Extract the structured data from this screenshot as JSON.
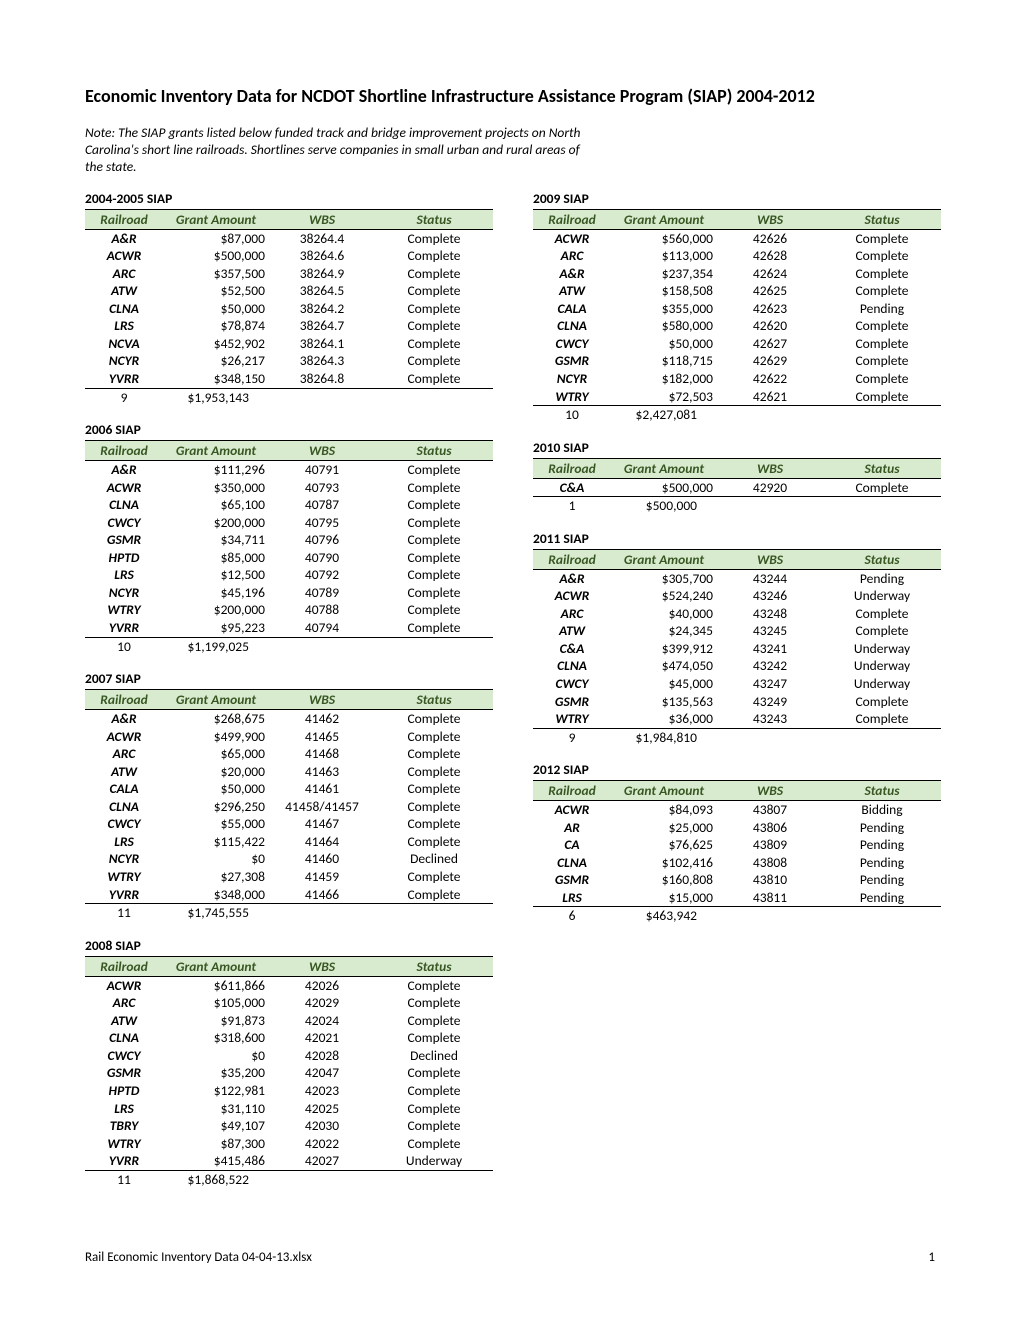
{
  "title": "Economic Inventory Data for NCDOT Shortline Infrastructure Assistance Program (SIAP) 2004-2012",
  "note": "Note:  The SIAP grants listed below funded track and bridge improvement projects on North Carolina's short line railroads.  Shortlines serve companies in small urban and rural areas of the state.",
  "headers": {
    "rail": "Railroad",
    "amt": "Grant Amount",
    "wbs": "WBS",
    "stat": "Status"
  },
  "footer": {
    "file": "Rail Economic Inventory Data 04-04-13.xlsx",
    "page": "1"
  },
  "colors": {
    "header_bg": "#d9ebcf",
    "header_fg": "#385723",
    "border": "#000000",
    "background": "#ffffff"
  },
  "blocks_left": [
    {
      "title": "2004-2005       SIAP",
      "rows": [
        [
          "A&R",
          "$87,000",
          "38264.4",
          "Complete"
        ],
        [
          "ACWR",
          "$500,000",
          "38264.6",
          "Complete"
        ],
        [
          "ARC",
          "$357,500",
          "38264.9",
          "Complete"
        ],
        [
          "ATW",
          "$52,500",
          "38264.5",
          "Complete"
        ],
        [
          "CLNA",
          "$50,000",
          "38264.2",
          "Complete"
        ],
        [
          "LRS",
          "$78,874",
          "38264.7",
          "Complete"
        ],
        [
          "NCVA",
          "$452,902",
          "38264.1",
          "Complete"
        ],
        [
          "NCYR",
          "$26,217",
          "38264.3",
          "Complete"
        ],
        [
          "YVRR",
          "$348,150",
          "38264.8",
          "Complete"
        ]
      ],
      "total": [
        "9",
        "$1,953,143"
      ]
    },
    {
      "title": "2006 SIAP",
      "rows": [
        [
          "A&R",
          "$111,296",
          "40791",
          "Complete"
        ],
        [
          "ACWR",
          "$350,000",
          "40793",
          "Complete"
        ],
        [
          "CLNA",
          "$65,100",
          "40787",
          "Complete"
        ],
        [
          "CWCY",
          "$200,000",
          "40795",
          "Complete"
        ],
        [
          "GSMR",
          "$34,711",
          "40796",
          "Complete"
        ],
        [
          "HPTD",
          "$85,000",
          "40790",
          "Complete"
        ],
        [
          "LRS",
          "$12,500",
          "40792",
          "Complete"
        ],
        [
          "NCYR",
          "$45,196",
          "40789",
          "Complete"
        ],
        [
          "WTRY",
          "$200,000",
          "40788",
          "Complete"
        ],
        [
          "YVRR",
          "$95,223",
          "40794",
          "Complete"
        ]
      ],
      "total": [
        "10",
        "$1,199,025"
      ]
    },
    {
      "title": "2007 SIAP",
      "rows": [
        [
          "A&R",
          "$268,675",
          "41462",
          "Complete"
        ],
        [
          "ACWR",
          "$499,900",
          "41465",
          "Complete"
        ],
        [
          "ARC",
          "$65,000",
          "41468",
          "Complete"
        ],
        [
          "ATW",
          "$20,000",
          "41463",
          "Complete"
        ],
        [
          "CALA",
          "$50,000",
          "41461",
          "Complete"
        ],
        [
          "CLNA",
          "$296,250",
          "41458/41457",
          "Complete"
        ],
        [
          "CWCY",
          "$55,000",
          "41467",
          "Complete"
        ],
        [
          "LRS",
          "$115,422",
          "41464",
          "Complete"
        ],
        [
          "NCYR",
          "$0",
          "41460",
          "Declined"
        ],
        [
          "WTRY",
          "$27,308",
          "41459",
          "Complete"
        ],
        [
          "YVRR",
          "$348,000",
          "41466",
          "Complete"
        ]
      ],
      "total": [
        "11",
        "$1,745,555"
      ]
    },
    {
      "title": "2008 SIAP",
      "rows": [
        [
          "ACWR",
          "$611,866",
          "42026",
          "Complete"
        ],
        [
          "ARC",
          "$105,000",
          "42029",
          "Complete"
        ],
        [
          "ATW",
          "$91,873",
          "42024",
          "Complete"
        ],
        [
          "CLNA",
          "$318,600",
          "42021",
          "Complete"
        ],
        [
          "CWCY",
          "$0",
          "42028",
          "Declined"
        ],
        [
          "GSMR",
          "$35,200",
          "42047",
          "Complete"
        ],
        [
          "HPTD",
          "$122,981",
          "42023",
          "Complete"
        ],
        [
          "LRS",
          "$31,110",
          "42025",
          "Complete"
        ],
        [
          "TBRY",
          "$49,107",
          "42030",
          "Complete"
        ],
        [
          "WTRY",
          "$87,300",
          "42022",
          "Complete"
        ],
        [
          "YVRR",
          "$415,486",
          "42027",
          "Underway"
        ]
      ],
      "total": [
        "11",
        "$1,868,522"
      ]
    }
  ],
  "blocks_right": [
    {
      "title": "2009 SIAP",
      "rows": [
        [
          "ACWR",
          "$560,000",
          "42626",
          "Complete"
        ],
        [
          "ARC",
          "$113,000",
          "42628",
          "Complete"
        ],
        [
          "A&R",
          "$237,354",
          "42624",
          "Complete"
        ],
        [
          "ATW",
          "$158,508",
          "42625",
          "Complete"
        ],
        [
          "CALA",
          "$355,000",
          "42623",
          "Pending"
        ],
        [
          "CLNA",
          "$580,000",
          "42620",
          "Complete"
        ],
        [
          "CWCY",
          "$50,000",
          "42627",
          "Complete"
        ],
        [
          "GSMR",
          "$118,715",
          "42629",
          "Complete"
        ],
        [
          "NCYR",
          "$182,000",
          "42622",
          "Complete"
        ],
        [
          "WTRY",
          "$72,503",
          "42621",
          "Complete"
        ]
      ],
      "total": [
        "10",
        "$2,427,081"
      ]
    },
    {
      "title": "2010 SIAP",
      "rows": [
        [
          "C&A",
          "$500,000",
          "42920",
          "Complete"
        ]
      ],
      "total": [
        "1",
        "$500,000"
      ]
    },
    {
      "title": "2011 SIAP",
      "rows": [
        [
          "A&R",
          "$305,700",
          "43244",
          "Pending"
        ],
        [
          "ACWR",
          "$524,240",
          "43246",
          "Underway"
        ],
        [
          "ARC",
          "$40,000",
          "43248",
          "Complete"
        ],
        [
          "ATW",
          "$24,345",
          "43245",
          "Complete"
        ],
        [
          "C&A",
          "$399,912",
          "43241",
          "Underway"
        ],
        [
          "CLNA",
          "$474,050",
          "43242",
          "Underway"
        ],
        [
          "CWCY",
          "$45,000",
          "43247",
          "Underway"
        ],
        [
          "GSMR",
          "$135,563",
          "43249",
          "Complete"
        ],
        [
          "WTRY",
          "$36,000",
          "43243",
          "Complete"
        ]
      ],
      "total": [
        "9",
        "$1,984,810"
      ]
    },
    {
      "title": "2012 SIAP",
      "rows": [
        [
          "ACWR",
          "$84,093",
          "43807",
          "Bidding"
        ],
        [
          "AR",
          "$25,000",
          "43806",
          "Pending"
        ],
        [
          "CA",
          "$76,625",
          "43809",
          "Pending"
        ],
        [
          "CLNA",
          "$102,416",
          "43808",
          "Pending"
        ],
        [
          "GSMR",
          "$160,808",
          "43810",
          "Pending"
        ],
        [
          "LRS",
          "$15,000",
          "43811",
          "Pending"
        ]
      ],
      "total": [
        "6",
        "$463,942"
      ]
    }
  ]
}
